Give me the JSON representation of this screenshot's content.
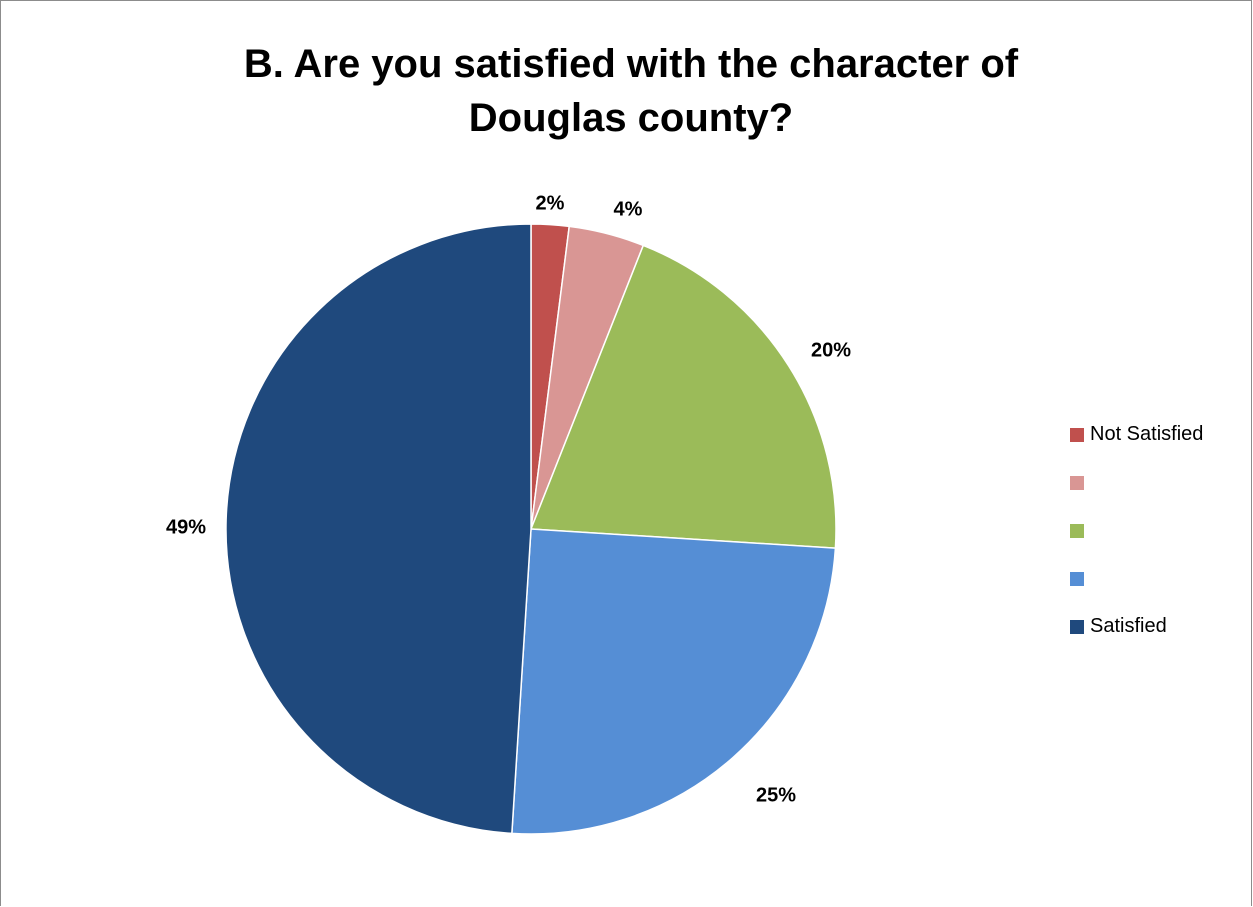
{
  "chart_data": {
    "type": "pie",
    "title_lines": [
      "B.  Are you satisfied with the character of",
      "Douglas county?"
    ],
    "categories": [
      "Not Satisfied",
      "",
      "",
      "",
      "Satisfied"
    ],
    "values": [
      2,
      4,
      20,
      25,
      49
    ],
    "data_labels": [
      "2%",
      "4%",
      "20%",
      "25%",
      "49%"
    ],
    "colors": [
      "#C0504D",
      "#D99694",
      "#9BBB59",
      "#558ED5",
      "#1F497D"
    ],
    "legend_position": "right",
    "start_angle": "12 o'clock",
    "direction": "clockwise"
  }
}
